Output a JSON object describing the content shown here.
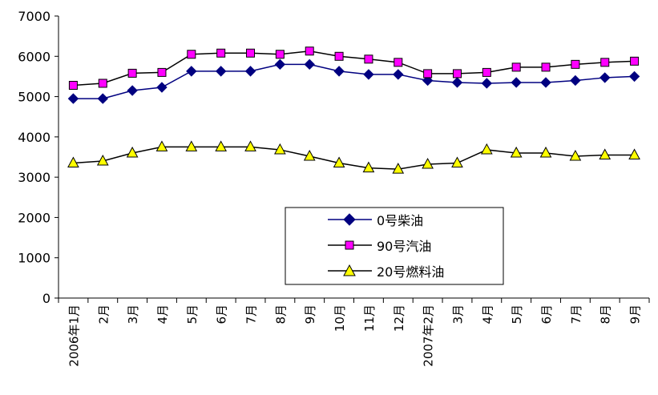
{
  "chart_data": {
    "type": "line",
    "title": "",
    "xlabel": "",
    "ylabel": "",
    "ylim": [
      0,
      7000
    ],
    "yticks": [
      0,
      1000,
      2000,
      3000,
      4000,
      5000,
      6000,
      7000
    ],
    "grid": false,
    "legend_position": "bottom-center",
    "categories": [
      "2006年1月",
      "2月",
      "3月",
      "4月",
      "5月",
      "6月",
      "7月",
      "8月",
      "9月",
      "10月",
      "11月",
      "12月",
      "2007年2月",
      "3月",
      "4月",
      "5月",
      "6月",
      "7月",
      "8月",
      "9月"
    ],
    "series": [
      {
        "name": "0号柴油",
        "color": "#000080",
        "fill": "#000080",
        "marker": "diamond",
        "values": [
          4950,
          4950,
          5150,
          5230,
          5630,
          5630,
          5630,
          5800,
          5800,
          5630,
          5550,
          5550,
          5400,
          5350,
          5330,
          5350,
          5350,
          5400,
          5470,
          5500
        ]
      },
      {
        "name": "90号汽油",
        "color": "#000000",
        "fill": "#ff00ff",
        "marker": "square",
        "values": [
          5280,
          5330,
          5580,
          5600,
          6050,
          6080,
          6080,
          6050,
          6130,
          6000,
          5930,
          5850,
          5570,
          5570,
          5600,
          5730,
          5730,
          5800,
          5850,
          5880
        ]
      },
      {
        "name": "20号燃料油",
        "color": "#000000",
        "fill": "#ffff00",
        "marker": "triangle",
        "values": [
          3350,
          3400,
          3600,
          3750,
          3750,
          3750,
          3750,
          3680,
          3520,
          3350,
          3230,
          3200,
          3320,
          3350,
          3680,
          3600,
          3600,
          3520,
          3550,
          3550
        ]
      }
    ]
  }
}
